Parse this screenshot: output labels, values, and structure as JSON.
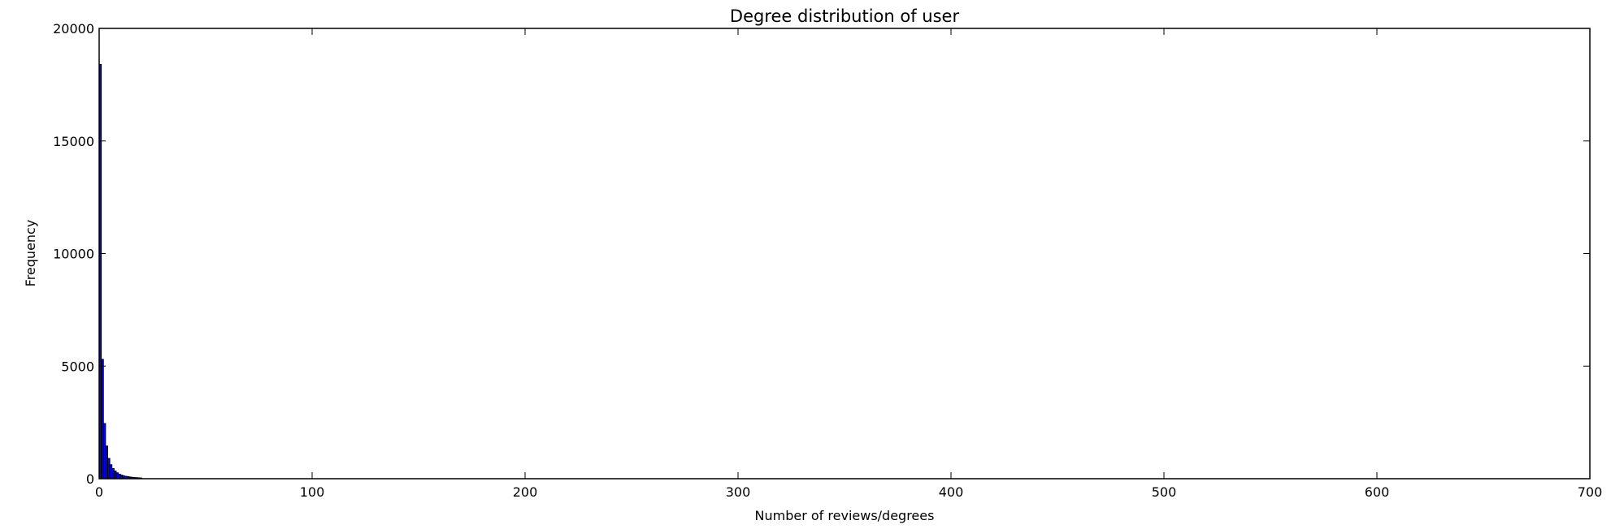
{
  "chart_data": {
    "type": "bar",
    "title": "Degree distribution of user",
    "xlabel": "Number of reviews/degrees",
    "ylabel": "Frequency",
    "xlim": [
      0,
      700
    ],
    "ylim": [
      0,
      20000
    ],
    "xticks": [
      0,
      100,
      200,
      300,
      400,
      500,
      600,
      700
    ],
    "yticks": [
      0,
      5000,
      10000,
      15000,
      20000
    ],
    "grid": false,
    "bar_color": "#0000ff",
    "bar_edge_color": "#000000",
    "bins": [
      {
        "x0": 0,
        "x1": 1,
        "value": 18400
      },
      {
        "x0": 1,
        "x1": 2,
        "value": 5300
      },
      {
        "x0": 2,
        "x1": 3,
        "value": 2450
      },
      {
        "x0": 3,
        "x1": 4,
        "value": 1450
      },
      {
        "x0": 4,
        "x1": 5,
        "value": 900
      },
      {
        "x0": 5,
        "x1": 6,
        "value": 620
      },
      {
        "x0": 6,
        "x1": 7,
        "value": 450
      },
      {
        "x0": 7,
        "x1": 8,
        "value": 340
      },
      {
        "x0": 8,
        "x1": 9,
        "value": 260
      },
      {
        "x0": 9,
        "x1": 10,
        "value": 200
      },
      {
        "x0": 10,
        "x1": 11,
        "value": 160
      },
      {
        "x0": 11,
        "x1": 12,
        "value": 130
      },
      {
        "x0": 12,
        "x1": 13,
        "value": 105
      },
      {
        "x0": 13,
        "x1": 14,
        "value": 90
      },
      {
        "x0": 14,
        "x1": 15,
        "value": 75
      },
      {
        "x0": 15,
        "x1": 16,
        "value": 62
      },
      {
        "x0": 16,
        "x1": 17,
        "value": 52
      },
      {
        "x0": 17,
        "x1": 18,
        "value": 45
      },
      {
        "x0": 18,
        "x1": 19,
        "value": 38
      },
      {
        "x0": 19,
        "x1": 20,
        "value": 32
      }
    ]
  }
}
